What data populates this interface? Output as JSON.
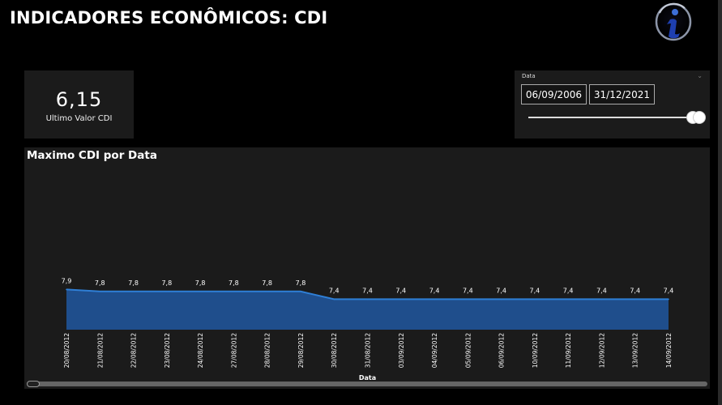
{
  "page": {
    "title": "INDICADORES ECONÔMICOS: CDI"
  },
  "logo": {
    "icon": "logo-i-icon",
    "colors": [
      "#1e3a8a",
      "#9aa4b5"
    ]
  },
  "kpi": {
    "value": "6,15",
    "label": "Ultimo Valor CDI"
  },
  "slicer": {
    "title": "Data",
    "start_date": "06/09/2006",
    "end_date": "31/12/2021",
    "range_fraction": [
      0.96,
      1.0
    ]
  },
  "chart_data": {
    "type": "area",
    "title": "Maximo CDI por Data",
    "xlabel": "Data",
    "ylabel": "",
    "categories": [
      "20/08/2012",
      "21/08/2012",
      "22/08/2012",
      "23/08/2012",
      "24/08/2012",
      "27/08/2012",
      "28/08/2012",
      "29/08/2012",
      "30/08/2012",
      "31/08/2012",
      "03/09/2012",
      "04/09/2012",
      "05/09/2012",
      "06/09/2012",
      "10/09/2012",
      "11/09/2012",
      "12/09/2012",
      "13/09/2012",
      "14/09/2012"
    ],
    "values": [
      7.9,
      7.8,
      7.8,
      7.8,
      7.8,
      7.8,
      7.8,
      7.8,
      7.4,
      7.4,
      7.4,
      7.4,
      7.4,
      7.4,
      7.4,
      7.4,
      7.4,
      7.4,
      7.4
    ],
    "data_labels": [
      "7,9",
      "7,8",
      "7,8",
      "7,8",
      "7,8",
      "7,8",
      "7,8",
      "7,8",
      "7,4",
      "7,4",
      "7,4",
      "7,4",
      "7,4",
      "7,4",
      "7,4",
      "7,4",
      "7,4",
      "7,4",
      "7,4"
    ],
    "ylim": [
      0,
      30
    ],
    "color": "#1f4e8c",
    "line_color": "#2f7fd6",
    "grid": false
  },
  "scrollbar": {
    "position_fraction": 0.0
  },
  "colors": {
    "background": "#000000",
    "card": "#1b1b1b",
    "text": "#ffffff"
  }
}
